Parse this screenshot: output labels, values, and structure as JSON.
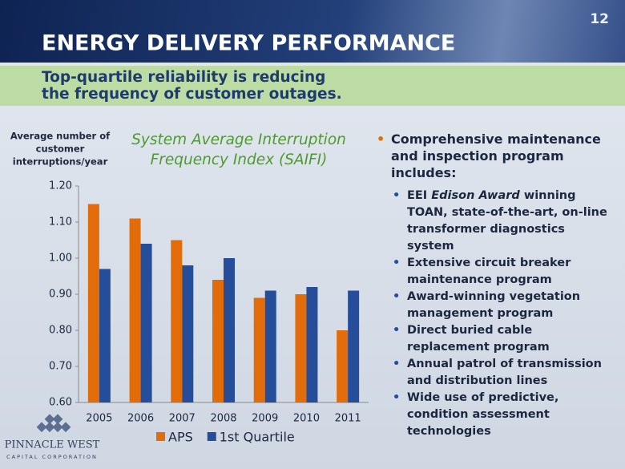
{
  "page_number": "12",
  "header": {
    "title": "ENERGY DELIVERY PERFORMANCE",
    "subtitle_lines": [
      "Top-quartile reliability is reducing",
      "the frequency of customer outages."
    ]
  },
  "chart_data": {
    "type": "bar",
    "title_lines": [
      "System Average Interruption",
      "Frequency Index (SAIFI)"
    ],
    "y_label_lines": [
      "Average number of",
      "customer",
      "interruptions/year"
    ],
    "categories": [
      "2005",
      "2006",
      "2007",
      "2008",
      "2009",
      "2010",
      "2011"
    ],
    "series": [
      {
        "name": "APS",
        "color": "#e36c0a",
        "values": [
          1.15,
          1.11,
          1.05,
          0.94,
          0.89,
          0.9,
          0.8
        ]
      },
      {
        "name": "1st Quartile",
        "color": "#254d9a",
        "values": [
          0.97,
          1.04,
          0.98,
          1.0,
          0.91,
          0.92,
          0.91
        ]
      }
    ],
    "ylim": [
      0.6,
      1.2
    ],
    "yticks": [
      {
        "value": 0.6,
        "label": "0.60"
      },
      {
        "value": 0.7,
        "label": "0.70"
      },
      {
        "value": 0.8,
        "label": "0.80"
      },
      {
        "value": 0.9,
        "label": "0.90"
      },
      {
        "value": 1.0,
        "label": "1.00"
      },
      {
        "value": 1.1,
        "label": "1.10"
      },
      {
        "value": 1.2,
        "label": "1.20"
      }
    ],
    "grid": false,
    "legend": "bottom"
  },
  "bullets": {
    "main": "Comprehensive maintenance and inspection program includes:",
    "items": [
      [
        "EEI ",
        "Edison Award",
        " winning TOAN, state-of-the-art, on-line transformer diagnostics system"
      ],
      [
        "Extensive circuit breaker maintenance program"
      ],
      [
        "Award-winning vegetation management program"
      ],
      [
        "Direct buried cable replacement program"
      ],
      [
        "Annual patrol of transmission and distribution lines"
      ],
      [
        "Wide use of predictive, condition assessment  technologies"
      ]
    ]
  },
  "logo": {
    "name": "PINNACLE WEST",
    "tagline": "CAPITAL CORPORATION"
  }
}
